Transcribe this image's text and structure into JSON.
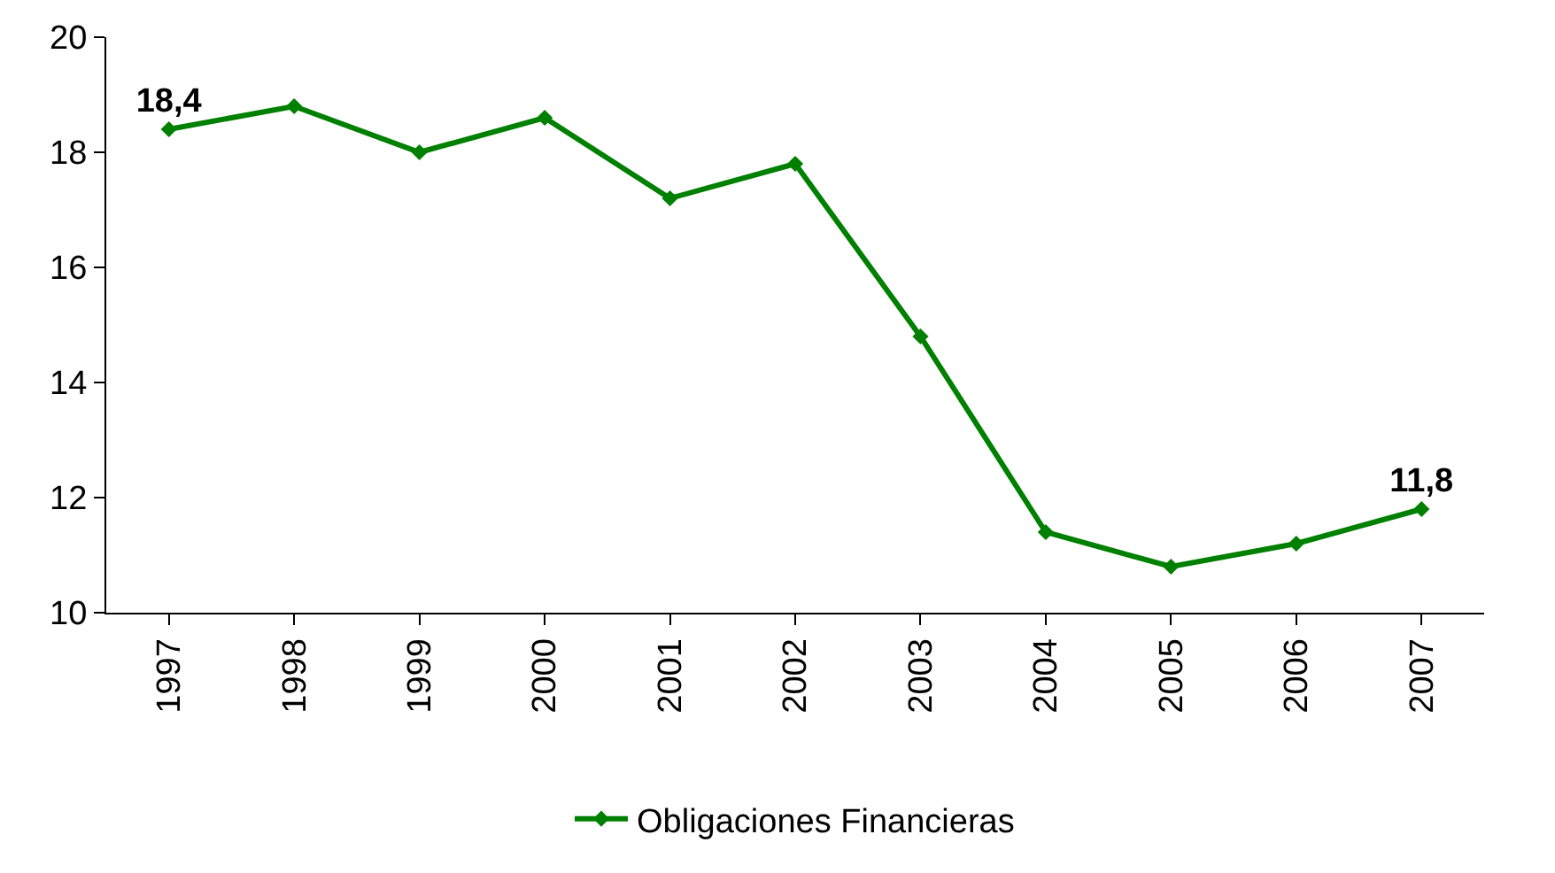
{
  "chart_data": {
    "type": "line",
    "categories": [
      "1997",
      "1998",
      "1999",
      "2000",
      "2001",
      "2002",
      "2003",
      "2004",
      "2005",
      "2006",
      "2007"
    ],
    "series": [
      {
        "name": "Obligaciones Financieras",
        "color": "#008000",
        "values": [
          18.4,
          18.8,
          18.0,
          18.6,
          17.2,
          17.8,
          14.8,
          11.4,
          10.8,
          11.2,
          11.8
        ],
        "value_labels": [
          "18,4",
          null,
          null,
          null,
          null,
          null,
          null,
          null,
          null,
          null,
          "11,8"
        ]
      }
    ],
    "ylim": [
      10,
      20
    ],
    "yticks": [
      10,
      12,
      14,
      16,
      18,
      20
    ],
    "legend": "bottom",
    "marker": "diamond",
    "line_style": "solid"
  }
}
